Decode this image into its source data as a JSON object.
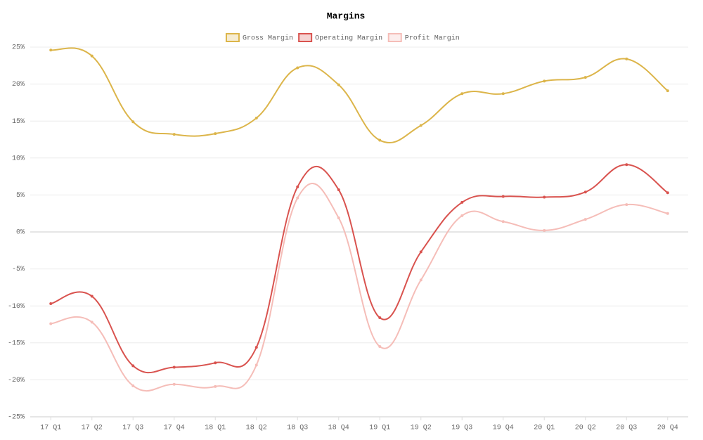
{
  "chart_data": {
    "type": "line",
    "title": "Margins",
    "categories": [
      "17 Q1",
      "17 Q2",
      "17 Q3",
      "17 Q4",
      "18 Q1",
      "18 Q2",
      "18 Q3",
      "18 Q4",
      "19 Q1",
      "19 Q2",
      "19 Q3",
      "19 Q4",
      "20 Q1",
      "20 Q2",
      "20 Q3",
      "20 Q4"
    ],
    "series": [
      {
        "name": "Gross Margin",
        "color": "#dcb54a",
        "values": [
          24.6,
          23.8,
          14.9,
          13.2,
          13.3,
          15.4,
          22.2,
          19.9,
          12.4,
          14.4,
          18.7,
          18.7,
          20.4,
          20.9,
          23.4,
          19.1
        ]
      },
      {
        "name": "Operating Margin",
        "color": "#d9534f",
        "values": [
          -9.7,
          -8.7,
          -18.1,
          -18.3,
          -17.7,
          -15.6,
          6.1,
          5.7,
          -11.6,
          -2.7,
          4.0,
          4.8,
          4.7,
          5.4,
          9.1,
          5.3
        ]
      },
      {
        "name": "Profit Margin",
        "color": "#f5bdb8",
        "values": [
          -12.4,
          -12.2,
          -20.8,
          -20.6,
          -20.9,
          -18.0,
          4.6,
          1.9,
          -15.5,
          -6.5,
          2.2,
          1.4,
          0.2,
          1.7,
          3.7,
          2.5
        ]
      }
    ],
    "ylim": [
      -25,
      25
    ],
    "yticks": [
      {
        "value": -25,
        "label": "-25%"
      },
      {
        "value": -20,
        "label": "-20%"
      },
      {
        "value": -15,
        "label": "-15%"
      },
      {
        "value": -10,
        "label": "-10%"
      },
      {
        "value": -5,
        "label": "-5%"
      },
      {
        "value": 0,
        "label": "0%"
      },
      {
        "value": 5,
        "label": "5%"
      },
      {
        "value": 10,
        "label": "10%"
      },
      {
        "value": 15,
        "label": "15%"
      },
      {
        "value": 20,
        "label": "20%"
      },
      {
        "value": 25,
        "label": "25%"
      }
    ],
    "grid": true,
    "legend": "top"
  }
}
